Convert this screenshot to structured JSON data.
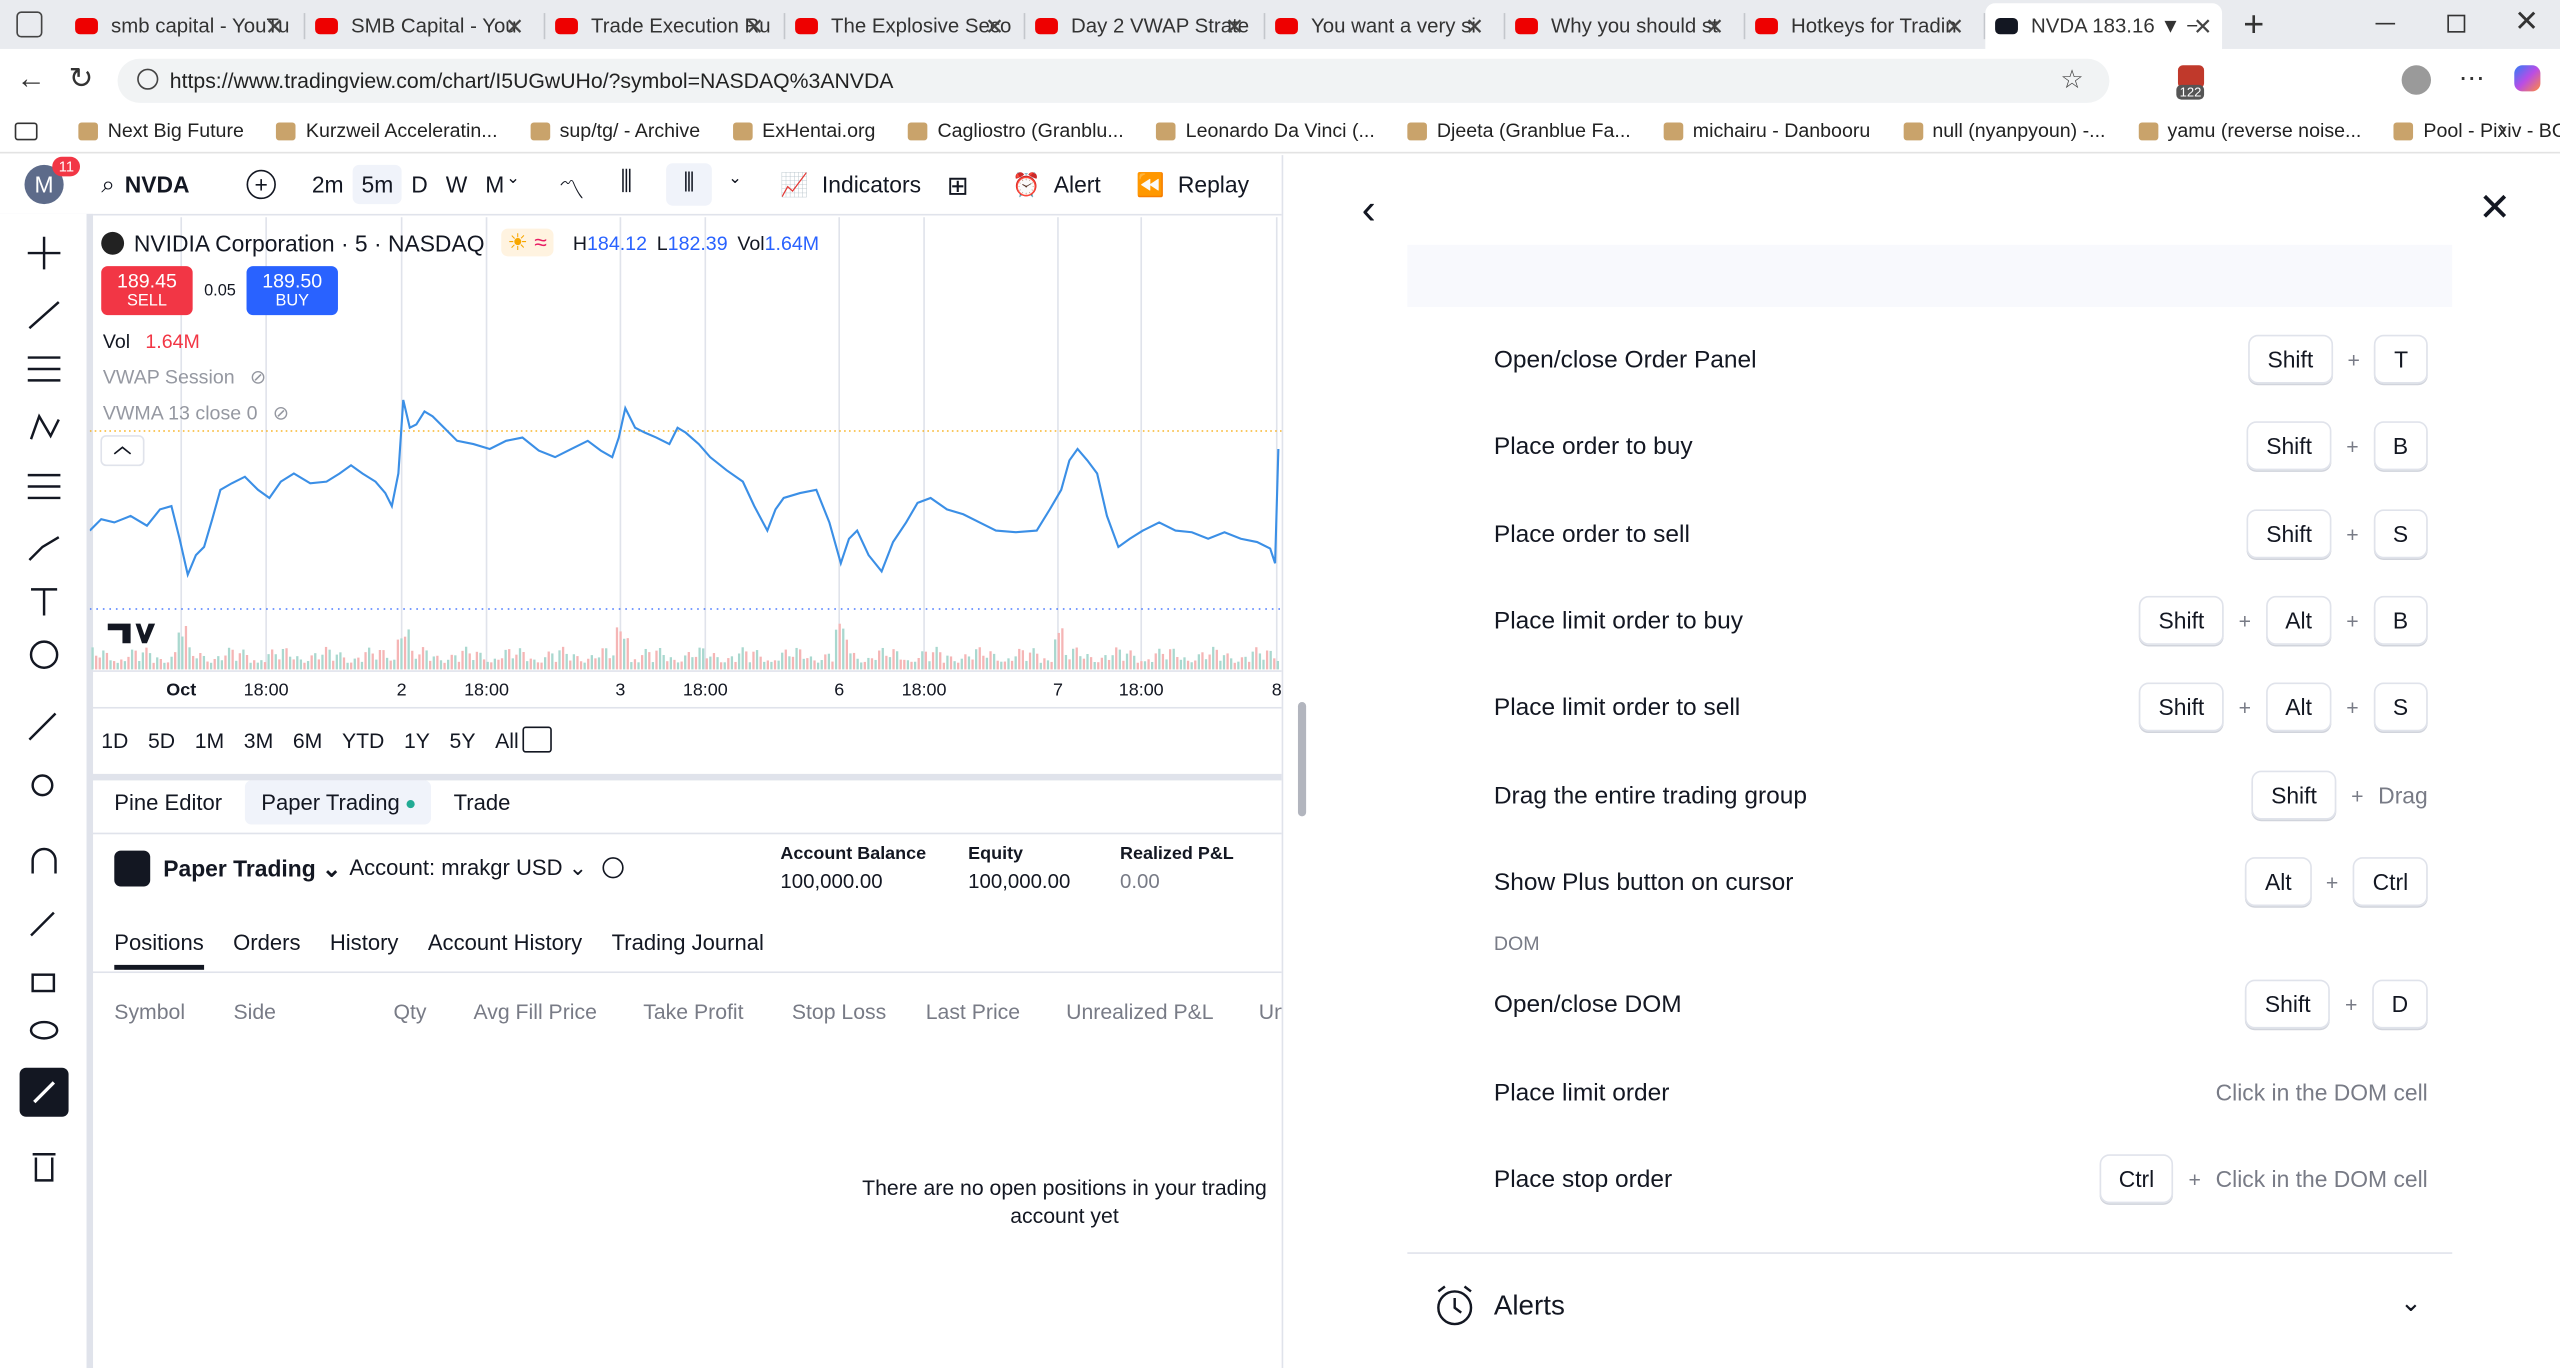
{
  "tabs": [
    "smb capital - YouTu",
    "SMB Capital - You",
    "Trade Execution Ru",
    "The Explosive Seco",
    "Day 2 VWAP Strate",
    "You want a very si",
    "Why you should st",
    "Hotkeys for Tradin",
    "NVDA 183.16 ▼ −"
  ],
  "address": "https://www.tradingview.com/chart/I5UGwUHo/?symbol=NASDAQ%3ANVDA",
  "extension_badge": "122",
  "bookmarks": [
    "Next Big Future",
    "Kurzweil Acceleratin...",
    "sup/tg/ - Archive",
    "ExHentai.org",
    "Cagliostro (Granblu...",
    "Leonardo Da Vinci (...",
    "Djeeta (Granblue Fa...",
    "michairu - Danbooru",
    "null (nyanpyoun) -...",
    "yamu (reverse noise...",
    "Pool - Pixiv - BOX S..."
  ],
  "toolbar": {
    "avatar": "M",
    "badge": "11",
    "symbol": "NVDA",
    "intervals": [
      "2m",
      "5m",
      "D",
      "W",
      "M"
    ],
    "indicators": "Indicators",
    "alert": "Alert",
    "replay": "Replay"
  },
  "legend": {
    "title": "NVIDIA Corporation · 5 · NASDAQ",
    "h": "H",
    "h_value": "184.12",
    "l": "L",
    "l_value": "182.39",
    "vol": "Vol",
    "vol_value": "1.64M",
    "sell_price": "189.45",
    "sell": "SELL",
    "spread": "0.05",
    "buy_price": "189.50",
    "buy": "BUY",
    "volume": "Vol",
    "volume_value": "1.64M",
    "vwap": "VWAP Session",
    "vwma": "VWMA 13 close 0"
  },
  "time_labels": [
    "Oct",
    "18:00",
    "2",
    "18:00",
    "3",
    "18:00",
    "6",
    "18:00",
    "7",
    "18:00",
    "8"
  ],
  "ranges": [
    "1D",
    "5D",
    "1M",
    "3M",
    "6M",
    "YTD",
    "1Y",
    "5Y",
    "All"
  ],
  "bottom_tabs": [
    "Pine Editor",
    "Paper Trading",
    "Trade"
  ],
  "account": {
    "broker": "Paper Trading",
    "account": "Account: mrakgr USD",
    "stats": [
      {
        "label": "Account Balance",
        "value": "100,000.00"
      },
      {
        "label": "Equity",
        "value": "100,000.00"
      },
      {
        "label": "Realized P&L",
        "value": "0.00"
      }
    ]
  },
  "positions_tabs": [
    "Positions",
    "Orders",
    "History",
    "Account History",
    "Trading Journal"
  ],
  "columns": [
    "Symbol",
    "Side",
    "Qty",
    "Avg Fill Price",
    "Take Profit",
    "Stop Loss",
    "Last Price",
    "Unrealized P&L",
    "Un"
  ],
  "empty_message": "There are no open positions in your trading account yet",
  "hotkeys": {
    "joiner": "+",
    "rows": [
      {
        "label": "Open/close Order Panel",
        "keys": [
          "Shift",
          "T"
        ]
      },
      {
        "label": "Place order to buy",
        "keys": [
          "Shift",
          "B"
        ]
      },
      {
        "label": "Place order to sell",
        "keys": [
          "Shift",
          "S"
        ]
      },
      {
        "label": "Place limit order to buy",
        "keys": [
          "Shift",
          "Alt",
          "B"
        ]
      },
      {
        "label": "Place limit order to sell",
        "keys": [
          "Shift",
          "Alt",
          "S"
        ]
      },
      {
        "label": "Drag the entire trading group",
        "keys": [
          "Shift"
        ],
        "text": "Drag"
      },
      {
        "label": "Show Plus button on cursor",
        "keys": [
          "Alt",
          "Ctrl"
        ]
      }
    ],
    "dom_section": "DOM",
    "dom_rows": [
      {
        "label": "Open/close DOM",
        "keys": [
          "Shift",
          "D"
        ]
      },
      {
        "label": "Place limit order",
        "keys": [],
        "text": "Click in the DOM cell"
      },
      {
        "label": "Place stop order",
        "keys": [
          "Ctrl"
        ],
        "text": "Click in the DOM cell"
      }
    ],
    "next_section": "Alerts"
  }
}
